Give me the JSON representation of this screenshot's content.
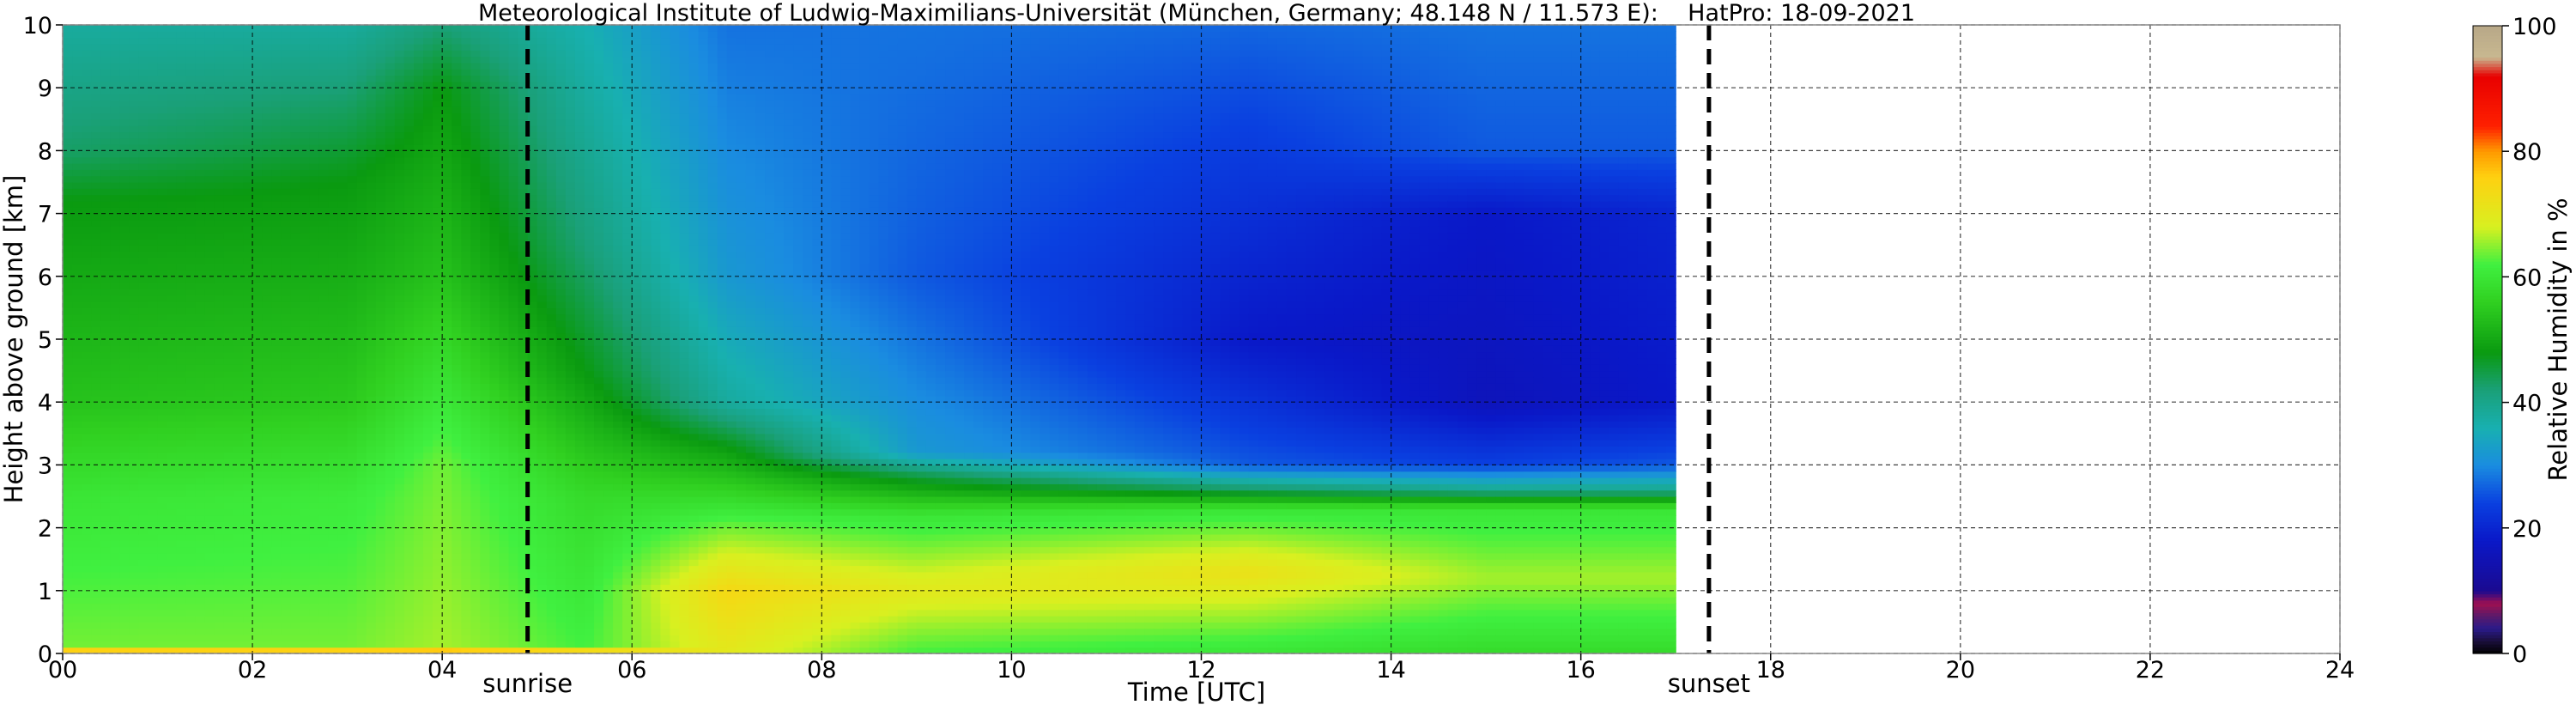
{
  "chart_data": {
    "type": "heatmap",
    "title": "Meteorological Institute of Ludwig-Maximilians-Universität (München, Germany; 48.148 N / 11.573 E):    HatPro: 18-09-2021",
    "xlabel": "Time [UTC]",
    "ylabel": "Height above ground [km]",
    "xlim": [
      0,
      24
    ],
    "ylim": [
      0,
      10
    ],
    "x_ticks": [
      "00",
      "02",
      "04",
      "06",
      "08",
      "10",
      "12",
      "14",
      "16",
      "18",
      "20",
      "22",
      "24"
    ],
    "y_ticks": [
      "0",
      "1",
      "2",
      "3",
      "4",
      "5",
      "6",
      "7",
      "8",
      "9",
      "10"
    ],
    "grid": true,
    "data_end_hour": 17.0,
    "events": [
      {
        "label": "sunrise",
        "hour": 4.9
      },
      {
        "label": "sunset",
        "hour": 17.35
      }
    ],
    "colorbar": {
      "label": "Relative Humidity in %",
      "range": [
        0,
        100
      ],
      "ticks": [
        "0",
        "20",
        "40",
        "60",
        "80",
        "100"
      ],
      "stops": [
        {
          "value": 0,
          "color": "#000000"
        },
        {
          "value": 2,
          "color": "#1a0f3a"
        },
        {
          "value": 4,
          "color": "#2a1a8a"
        },
        {
          "value": 6,
          "color": "#5a1a6a"
        },
        {
          "value": 8,
          "color": "#a01050"
        },
        {
          "value": 10,
          "color": "#1a0a90"
        },
        {
          "value": 18,
          "color": "#0a18c8"
        },
        {
          "value": 24,
          "color": "#0a40e0"
        },
        {
          "value": 30,
          "color": "#1a8ce0"
        },
        {
          "value": 36,
          "color": "#18b0b0"
        },
        {
          "value": 42,
          "color": "#1aa078"
        },
        {
          "value": 48,
          "color": "#0a9a10"
        },
        {
          "value": 56,
          "color": "#30d020"
        },
        {
          "value": 62,
          "color": "#40f040"
        },
        {
          "value": 68,
          "color": "#d8f020"
        },
        {
          "value": 76,
          "color": "#ffd010"
        },
        {
          "value": 80,
          "color": "#ff9a00"
        },
        {
          "value": 84,
          "color": "#ff2000"
        },
        {
          "value": 92,
          "color": "#e80000"
        },
        {
          "value": 95,
          "color": "#c8b890"
        },
        {
          "value": 100,
          "color": "#b8a888"
        }
      ]
    },
    "rh_profile_keypoints": [
      {
        "hour": 0.0,
        "rh": [
          {
            "km": 0,
            "v": 84
          },
          {
            "km": 0.12,
            "v": 64
          },
          {
            "km": 2.5,
            "v": 60
          },
          {
            "km": 4.0,
            "v": 54
          },
          {
            "km": 7.2,
            "v": 48
          },
          {
            "km": 8.0,
            "v": 43
          },
          {
            "km": 10,
            "v": 38
          }
        ]
      },
      {
        "hour": 3.0,
        "rh": [
          {
            "km": 0,
            "v": 84
          },
          {
            "km": 0.12,
            "v": 64
          },
          {
            "km": 2.5,
            "v": 61
          },
          {
            "km": 4.0,
            "v": 55
          },
          {
            "km": 7.5,
            "v": 48
          },
          {
            "km": 8.5,
            "v": 44
          },
          {
            "km": 10,
            "v": 38
          }
        ]
      },
      {
        "hour": 4.0,
        "rh": [
          {
            "km": 0,
            "v": 84
          },
          {
            "km": 0.12,
            "v": 66
          },
          {
            "km": 3.0,
            "v": 64
          },
          {
            "km": 6.0,
            "v": 54
          },
          {
            "km": 9.0,
            "v": 48
          },
          {
            "km": 10,
            "v": 42
          }
        ]
      },
      {
        "hour": 5.5,
        "rh": [
          {
            "km": 0,
            "v": 82
          },
          {
            "km": 0.12,
            "v": 62
          },
          {
            "km": 2.5,
            "v": 58
          },
          {
            "km": 4.5,
            "v": 48
          },
          {
            "km": 6.5,
            "v": 42
          },
          {
            "km": 10,
            "v": 36
          }
        ]
      },
      {
        "hour": 7.0,
        "rh": [
          {
            "km": 0,
            "v": 70
          },
          {
            "km": 1.0,
            "v": 74
          },
          {
            "km": 2.0,
            "v": 64
          },
          {
            "km": 3.3,
            "v": 48
          },
          {
            "km": 4.0,
            "v": 38
          },
          {
            "km": 6.0,
            "v": 32
          },
          {
            "km": 10,
            "v": 28
          }
        ]
      },
      {
        "hour": 9.0,
        "rh": [
          {
            "km": 0,
            "v": 62
          },
          {
            "km": 1.0,
            "v": 70
          },
          {
            "km": 2.2,
            "v": 60
          },
          {
            "km": 2.8,
            "v": 46
          },
          {
            "km": 3.2,
            "v": 32
          },
          {
            "km": 6.0,
            "v": 26
          },
          {
            "km": 10,
            "v": 28
          }
        ]
      },
      {
        "hour": 12.5,
        "rh": [
          {
            "km": 0,
            "v": 60
          },
          {
            "km": 1.3,
            "v": 72
          },
          {
            "km": 2.3,
            "v": 60
          },
          {
            "km": 2.6,
            "v": 44
          },
          {
            "km": 3.0,
            "v": 26
          },
          {
            "km": 5.0,
            "v": 18
          },
          {
            "km": 9.0,
            "v": 25
          },
          {
            "km": 10,
            "v": 27
          }
        ]
      },
      {
        "hour": 15.0,
        "rh": [
          {
            "km": 0,
            "v": 58
          },
          {
            "km": 1.2,
            "v": 66
          },
          {
            "km": 2.3,
            "v": 60
          },
          {
            "km": 2.6,
            "v": 40
          },
          {
            "km": 3.0,
            "v": 24
          },
          {
            "km": 4.0,
            "v": 16
          },
          {
            "km": 7.0,
            "v": 18
          },
          {
            "km": 8.0,
            "v": 26
          },
          {
            "km": 10,
            "v": 28
          }
        ]
      },
      {
        "hour": 17.0,
        "rh": [
          {
            "km": 0,
            "v": 58
          },
          {
            "km": 1.2,
            "v": 66
          },
          {
            "km": 2.3,
            "v": 60
          },
          {
            "km": 2.6,
            "v": 40
          },
          {
            "km": 3.0,
            "v": 26
          },
          {
            "km": 4.0,
            "v": 18
          },
          {
            "km": 7.0,
            "v": 20
          },
          {
            "km": 8.0,
            "v": 26
          },
          {
            "km": 10,
            "v": 28
          }
        ]
      }
    ]
  }
}
